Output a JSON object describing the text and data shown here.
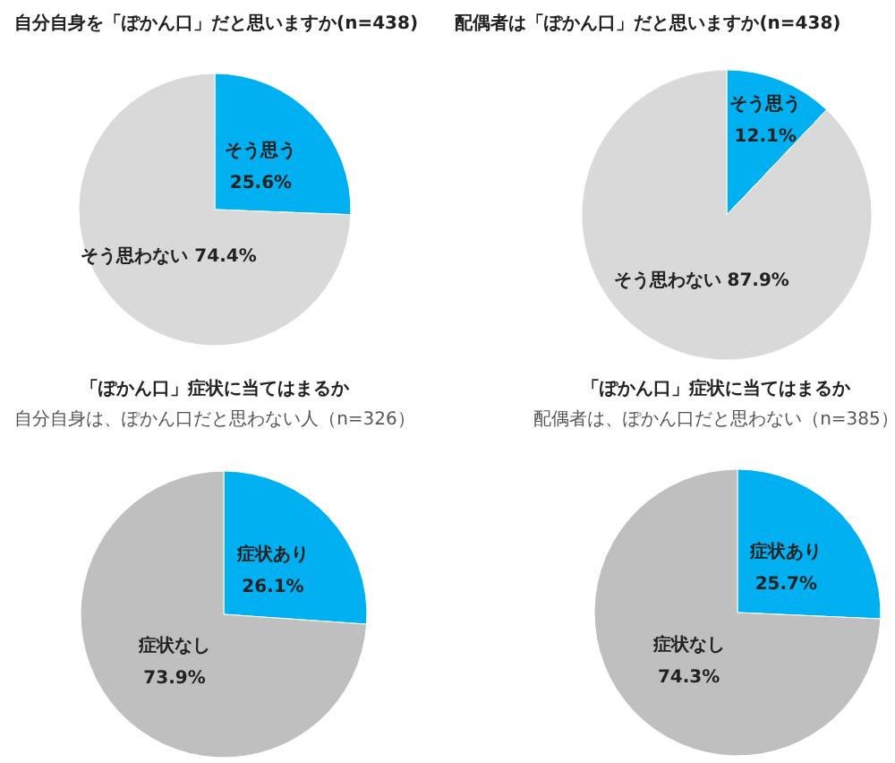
{
  "chart_data": [
    {
      "type": "pie",
      "title": "自分自身を「ぽかん口」だと思いますか(n=438)",
      "categories": [
        "そう思う",
        "そう思わない"
      ],
      "values": [
        25.6,
        74.4
      ],
      "value_labels": [
        "25.6%",
        "74.4%"
      ],
      "colors": [
        "#00b0f0",
        "#d9d9d9"
      ]
    },
    {
      "type": "pie",
      "title": "配偶者は「ぽかん口」だと思いますか(n=438)",
      "categories": [
        "そう思う",
        "そう思わない"
      ],
      "values": [
        12.1,
        87.9
      ],
      "value_labels": [
        "12.1%",
        "87.9%"
      ],
      "colors": [
        "#00b0f0",
        "#d9d9d9"
      ]
    },
    {
      "type": "pie",
      "title": "「ぽかん口」症状に当てはまるか",
      "subtitle": "自分自身は、ぽかん口だと思わない人（n=326）",
      "categories": [
        "症状あり",
        "症状なし"
      ],
      "values": [
        26.1,
        73.9
      ],
      "value_labels": [
        "26.1%",
        "73.9%"
      ],
      "colors": [
        "#00b0f0",
        "#bfbfbf"
      ]
    },
    {
      "type": "pie",
      "title": "「ぽかん口」症状に当てはまるか",
      "subtitle": "配偶者は、ぽかん口だと思わない（n=385）",
      "categories": [
        "症状あり",
        "症状なし"
      ],
      "values": [
        25.7,
        74.3
      ],
      "value_labels": [
        "25.7%",
        "74.3%"
      ],
      "colors": [
        "#00b0f0",
        "#bfbfbf"
      ]
    }
  ]
}
